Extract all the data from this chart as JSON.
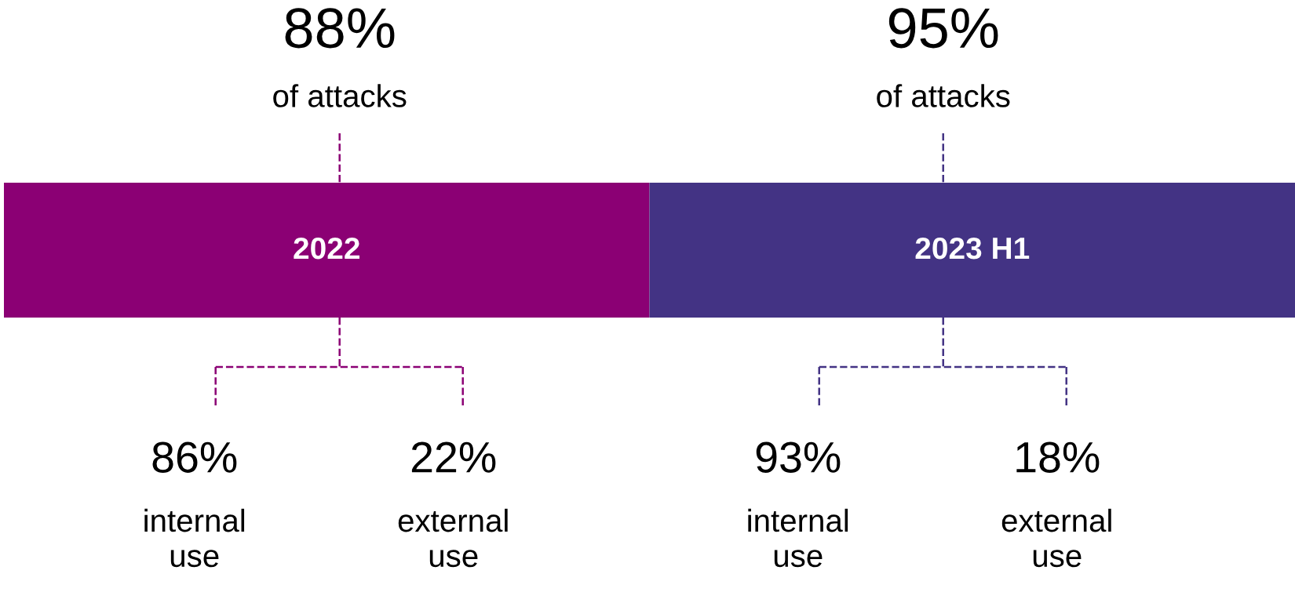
{
  "chart_data": {
    "type": "other",
    "categories": [
      "2022",
      "2023 H1"
    ],
    "colors": [
      "#8b0074",
      "#433384"
    ],
    "series": [
      {
        "name": "of attacks",
        "values": [
          88,
          95
        ],
        "value_labels": [
          "88%",
          "95%"
        ]
      },
      {
        "name": "internal use",
        "values": [
          86,
          93
        ],
        "value_labels": [
          "86%",
          "93%"
        ]
      },
      {
        "name": "external use",
        "values": [
          22,
          18
        ],
        "value_labels": [
          "22%",
          "18%"
        ]
      }
    ]
  }
}
